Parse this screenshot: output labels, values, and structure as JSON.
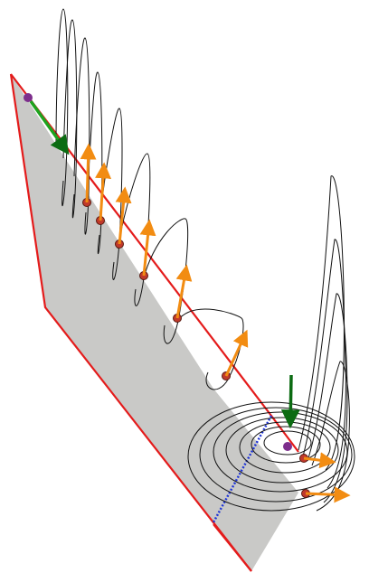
{
  "colors": {
    "plane_fill": "#c9c9c7",
    "plane_edge": "#e41b1b",
    "curve": "#111111",
    "dot_fill": "#c0392b",
    "dot_outline": "#5a1a10",
    "arrow_orange": "#f28c12",
    "arrow_green": "#1fa31f",
    "arrow_dark_green": "#0b6b12",
    "end_point": "#7d2e8c",
    "dashed_line": "#1f35d6"
  },
  "icons": {
    "start_marker": "purple-dot-icon",
    "end_marker": "purple-dot-icon",
    "force_vector": "orange-arrow-icon",
    "velocity_vector": "green-arrow-icon"
  }
}
